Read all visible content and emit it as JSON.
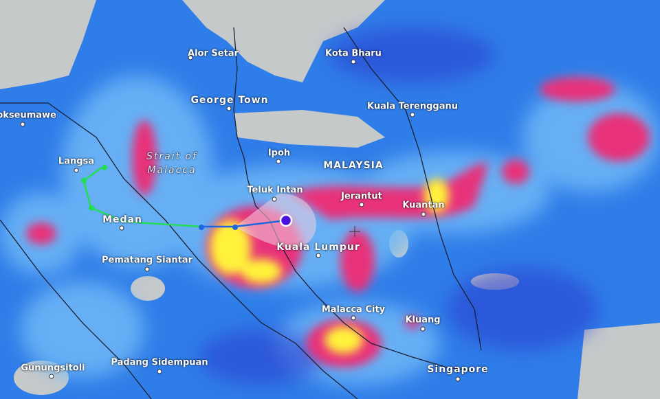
{
  "map": {
    "layer": "precipitation",
    "colors": {
      "water_rain_low": "#2f7de8",
      "rain_mid": "#5aa8f5",
      "rain_heavy": "#e8307a",
      "rain_extreme": "#fff23a",
      "land": "#c9cccc",
      "track_past": "#22dd55",
      "track_forecast": "#1e66e0",
      "storm_center": "#4a10e0"
    },
    "labels": {
      "lhokseumawe": "hokseumawe",
      "alor_setar": "Alor Setar",
      "kota_bharu": "Kota Bharu",
      "george_town": "George Town",
      "kuala_terengganu": "Kuala Terengganu",
      "langsa": "Langsa",
      "strait_line1": "Strait of",
      "strait_line2": "Malacca",
      "ipoh": "Ipoh",
      "malaysia": "MALAYSIA",
      "teluk_intan": "Teluk Intan",
      "jerantut": "Jerantut",
      "kuantan": "Kuantan",
      "medan": "Medan",
      "kuala_lumpur": "Kuala Lumpur",
      "pematang_siantar": "Pematang Siantar",
      "malacca_city": "Malacca City",
      "kluang": "Kluang",
      "gunungsitoli": "Gunungsitoli",
      "padang_sidempuan": "Padang Sidempuan",
      "singapore": "Singapore"
    }
  }
}
